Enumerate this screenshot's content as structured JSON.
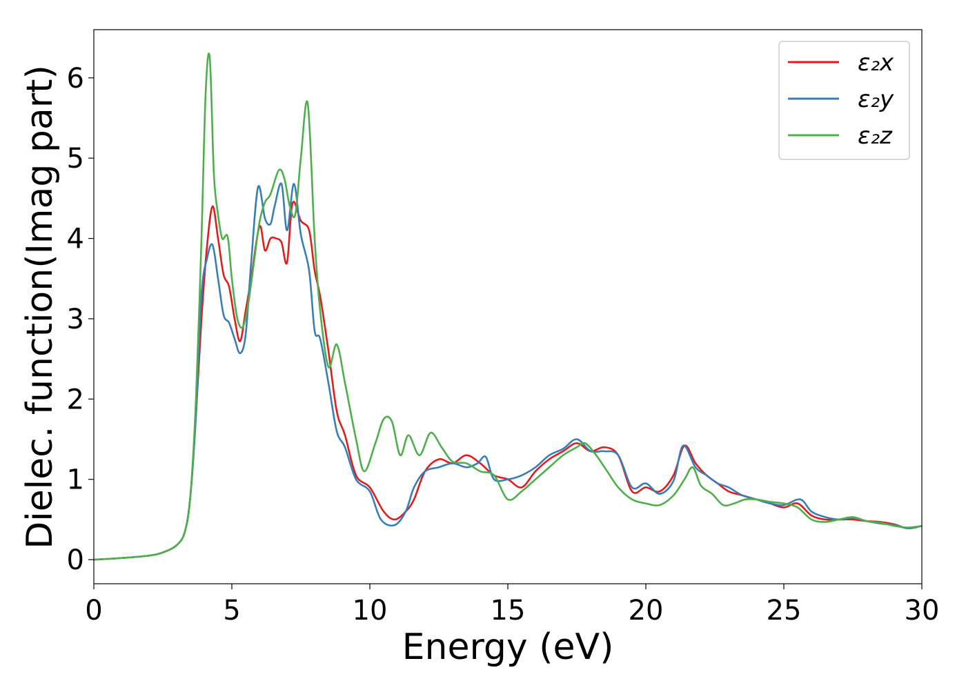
{
  "chart_data": {
    "type": "line",
    "xlabel": "Energy (eV)",
    "ylabel": "Dielec. function(Imag part)",
    "xlim": [
      0,
      30
    ],
    "ylim": [
      -0.3,
      6.6
    ],
    "xticks": [
      0,
      5,
      10,
      15,
      20,
      25,
      30
    ],
    "yticks": [
      0,
      1,
      2,
      3,
      4,
      5,
      6
    ],
    "grid": false,
    "legend_position": "top-right",
    "series": [
      {
        "name": "ε₂x",
        "color": "#e41a1c",
        "x": [
          0,
          1,
          2,
          2.5,
          3,
          3.3,
          3.5,
          3.7,
          3.9,
          4.1,
          4.3,
          4.5,
          4.7,
          4.9,
          5.1,
          5.3,
          5.5,
          5.7,
          6.0,
          6.2,
          6.4,
          6.6,
          6.8,
          7.0,
          7.2,
          7.5,
          7.8,
          8.0,
          8.2,
          8.5,
          8.8,
          9.1,
          9.5,
          10.0,
          10.5,
          10.9,
          11.3,
          11.6,
          12.0,
          12.5,
          13.0,
          13.5,
          14.0,
          14.5,
          15.0,
          15.5,
          16.0,
          16.5,
          17.0,
          17.5,
          18.0,
          18.5,
          19.0,
          19.5,
          20.0,
          20.5,
          21.0,
          21.4,
          21.8,
          22.2,
          22.6,
          23.0,
          23.5,
          24.0,
          24.5,
          25.0,
          25.5,
          26.0,
          26.5,
          27.0,
          27.5,
          28.0,
          28.5,
          29.0,
          29.5,
          30.0
        ],
        "values": [
          0,
          0.02,
          0.05,
          0.09,
          0.18,
          0.35,
          0.8,
          1.8,
          3.0,
          3.9,
          4.4,
          4.0,
          3.55,
          3.4,
          3.0,
          2.72,
          3.1,
          3.5,
          4.15,
          3.85,
          4.0,
          4.0,
          3.95,
          3.7,
          4.44,
          4.22,
          4.1,
          3.6,
          3.28,
          2.6,
          1.85,
          1.55,
          1.05,
          0.9,
          0.6,
          0.5,
          0.6,
          0.75,
          1.1,
          1.25,
          1.2,
          1.3,
          1.2,
          1.05,
          1.0,
          0.9,
          1.1,
          1.25,
          1.35,
          1.45,
          1.35,
          1.4,
          1.3,
          0.85,
          0.9,
          0.85,
          1.05,
          1.42,
          1.2,
          1.05,
          0.95,
          0.85,
          0.8,
          0.75,
          0.7,
          0.65,
          0.7,
          0.55,
          0.5,
          0.5,
          0.5,
          0.48,
          0.47,
          0.44,
          0.39,
          0.42
        ]
      },
      {
        "name": "ε₂y",
        "color": "#377eb8",
        "x": [
          0,
          1,
          2,
          2.5,
          3,
          3.3,
          3.5,
          3.7,
          3.9,
          4.1,
          4.3,
          4.5,
          4.7,
          4.9,
          5.1,
          5.3,
          5.5,
          5.7,
          5.95,
          6.2,
          6.4,
          6.55,
          6.8,
          7.0,
          7.25,
          7.5,
          7.8,
          8.0,
          8.2,
          8.5,
          8.8,
          9.1,
          9.5,
          10.0,
          10.4,
          10.9,
          11.3,
          11.6,
          12.0,
          12.5,
          13.0,
          13.5,
          13.9,
          14.2,
          14.5,
          15.0,
          15.5,
          16.0,
          16.5,
          17.0,
          17.5,
          18.0,
          18.5,
          19.0,
          19.5,
          20.0,
          20.5,
          21.0,
          21.35,
          21.8,
          22.2,
          22.6,
          23.0,
          23.5,
          24.0,
          24.5,
          25.0,
          25.6,
          26.0,
          26.5,
          27.0,
          27.5,
          28.0,
          28.5,
          29.0,
          29.5,
          30.0
        ],
        "values": [
          0,
          0.02,
          0.05,
          0.09,
          0.18,
          0.35,
          0.8,
          1.8,
          3.3,
          3.75,
          3.92,
          3.5,
          3.05,
          2.95,
          2.75,
          2.57,
          2.8,
          3.7,
          4.64,
          4.25,
          4.18,
          4.4,
          4.68,
          4.1,
          4.68,
          4.05,
          3.6,
          2.85,
          2.75,
          2.2,
          1.6,
          1.4,
          1.0,
          0.85,
          0.5,
          0.43,
          0.6,
          0.9,
          1.1,
          1.15,
          1.2,
          1.15,
          1.2,
          1.28,
          1.0,
          1.0,
          1.05,
          1.15,
          1.3,
          1.38,
          1.5,
          1.35,
          1.35,
          1.3,
          0.9,
          0.95,
          0.82,
          0.98,
          1.42,
          1.15,
          1.05,
          0.95,
          0.9,
          0.8,
          0.75,
          0.7,
          0.68,
          0.75,
          0.6,
          0.53,
          0.5,
          0.52,
          0.48,
          0.45,
          0.43,
          0.39,
          0.42
        ]
      },
      {
        "name": "ε₂z",
        "color": "#4daf4a",
        "x": [
          0,
          1,
          2,
          2.5,
          3,
          3.3,
          3.5,
          3.7,
          3.9,
          4.05,
          4.2,
          4.35,
          4.5,
          4.65,
          4.85,
          5.0,
          5.2,
          5.4,
          5.6,
          5.8,
          6.0,
          6.2,
          6.4,
          6.7,
          6.9,
          7.1,
          7.3,
          7.5,
          7.75,
          8.0,
          8.2,
          8.5,
          8.8,
          9.1,
          9.5,
          9.8,
          10.2,
          10.5,
          10.8,
          11.1,
          11.4,
          11.8,
          12.2,
          12.6,
          13.0,
          13.5,
          14.0,
          14.5,
          15.0,
          15.5,
          16.0,
          16.5,
          17.0,
          17.5,
          17.8,
          18.2,
          18.6,
          19.0,
          19.5,
          20.0,
          20.5,
          21.0,
          21.4,
          21.7,
          22.0,
          22.4,
          22.8,
          23.2,
          23.6,
          24.0,
          24.5,
          25.0,
          25.5,
          26.0,
          26.5,
          27.0,
          27.5,
          28.0,
          28.5,
          29.0,
          29.5,
          30.0
        ],
        "values": [
          0,
          0.02,
          0.05,
          0.09,
          0.18,
          0.35,
          0.8,
          2.0,
          4.0,
          5.8,
          6.25,
          4.8,
          4.3,
          4.0,
          4.02,
          3.5,
          3.0,
          2.9,
          3.2,
          3.7,
          4.2,
          4.45,
          4.55,
          4.85,
          4.75,
          4.4,
          4.3,
          5.0,
          5.68,
          4.0,
          3.1,
          2.4,
          2.68,
          2.2,
          1.5,
          1.1,
          1.45,
          1.75,
          1.72,
          1.3,
          1.55,
          1.3,
          1.58,
          1.4,
          1.22,
          1.2,
          1.1,
          1.05,
          0.75,
          0.85,
          1.0,
          1.15,
          1.3,
          1.4,
          1.45,
          1.3,
          1.1,
          0.9,
          0.75,
          0.7,
          0.68,
          0.8,
          1.0,
          1.15,
          0.92,
          0.82,
          0.68,
          0.7,
          0.75,
          0.75,
          0.72,
          0.7,
          0.65,
          0.5,
          0.47,
          0.5,
          0.53,
          0.48,
          0.46,
          0.42,
          0.4,
          0.42
        ]
      }
    ]
  }
}
